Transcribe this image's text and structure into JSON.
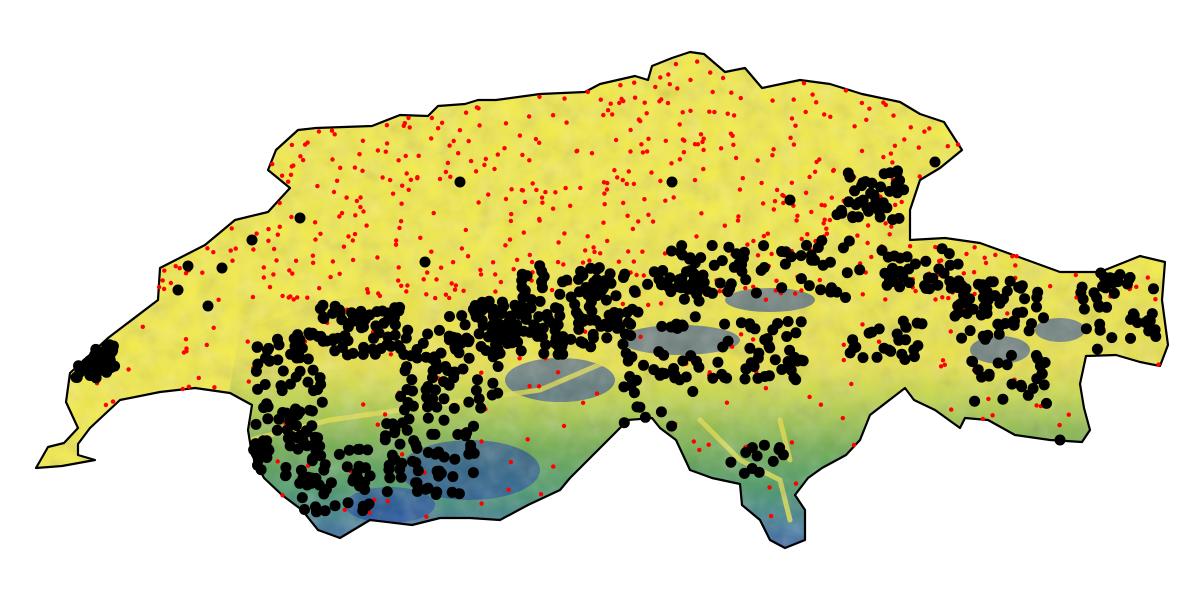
{
  "map": {
    "subject": "Switzerland",
    "background_color": "#ffffff",
    "relief_colors": [
      "#f4ec48",
      "#e9e24a",
      "#b8d24c",
      "#5fa453",
      "#2a8a6e",
      "#1f5fb0",
      "#0a2fa8"
    ],
    "border_color": "#000000",
    "layers": [
      {
        "name": "small-points",
        "color": "#ff0000",
        "marker": "dot-small"
      },
      {
        "name": "large-points",
        "color": "#000000",
        "marker": "dot-large"
      }
    ]
  }
}
